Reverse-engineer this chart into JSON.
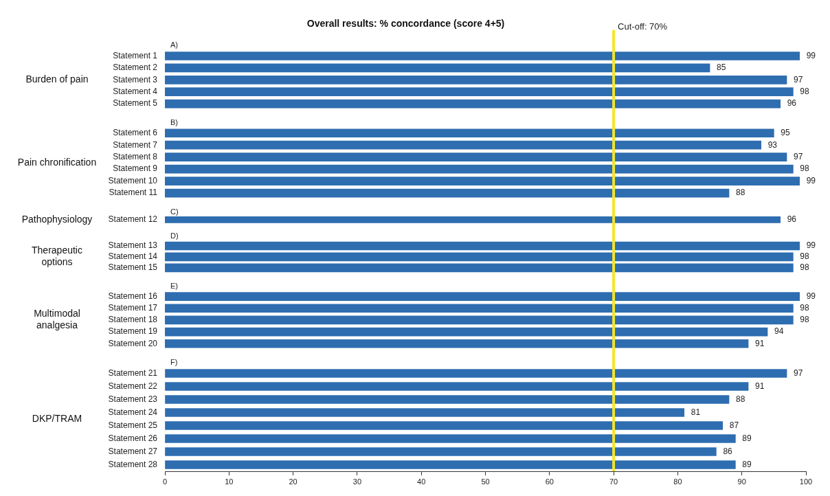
{
  "chart_data": [
    {
      "type": "bar",
      "orientation": "horizontal",
      "title": "Overall results: % concordance (score 4+5)",
      "ylabel": "Burden of pain",
      "annotations": [
        "A)"
      ],
      "categories": [
        "Statement 1",
        "Statement 2",
        "Statement 3",
        "Statement 4",
        "Statement 5"
      ],
      "values": [
        99,
        85,
        97,
        98,
        96
      ],
      "color": "#2e6db0",
      "data_labels": true,
      "xlim": [
        0,
        100
      ],
      "tick_labels": "y",
      "ref_lines": [
        {
          "axis": "x",
          "value": 70,
          "label": "Cut-off: 70%",
          "color": "#f5e52a"
        }
      ]
    },
    {
      "type": "bar",
      "orientation": "horizontal",
      "ylabel": "Pain chronification",
      "annotations": [
        "B)"
      ],
      "categories": [
        "Statement 6",
        "Statement 7",
        "Statement 8",
        "Statement 9",
        "Statement 10",
        "Statement 11"
      ],
      "values": [
        95,
        93,
        97,
        98,
        99,
        88
      ],
      "color": "#2e6db0",
      "data_labels": true,
      "xlim": [
        0,
        100
      ],
      "tick_labels": "y",
      "ref_lines": [
        {
          "axis": "x",
          "value": 70,
          "color": "#f5e52a"
        }
      ]
    },
    {
      "type": "bar",
      "orientation": "horizontal",
      "ylabel": "Pathophysiology",
      "annotations": [
        "C)"
      ],
      "categories": [
        "Statement 12"
      ],
      "values": [
        96
      ],
      "color": "#2e6db0",
      "data_labels": true,
      "xlim": [
        0,
        100
      ],
      "tick_labels": "y",
      "ref_lines": [
        {
          "axis": "x",
          "value": 70,
          "color": "#f5e52a"
        }
      ]
    },
    {
      "type": "bar",
      "orientation": "horizontal",
      "ylabel": "Therapeutic options",
      "annotations": [
        "D)"
      ],
      "categories": [
        "Statement 13",
        "Statement 14",
        "Statement 15"
      ],
      "values": [
        99,
        98,
        98
      ],
      "color": "#2e6db0",
      "data_labels": true,
      "xlim": [
        0,
        100
      ],
      "tick_labels": "y",
      "ref_lines": [
        {
          "axis": "x",
          "value": 70,
          "color": "#f5e52a"
        }
      ]
    },
    {
      "type": "bar",
      "orientation": "horizontal",
      "ylabel": "Multimodal analgesia",
      "annotations": [
        "E)"
      ],
      "categories": [
        "Statement 16",
        "Statement 17",
        "Statement 18",
        "Statement 19",
        "Statement 20"
      ],
      "values": [
        99,
        98,
        98,
        94,
        91
      ],
      "color": "#2e6db0",
      "data_labels": true,
      "xlim": [
        0,
        100
      ],
      "tick_labels": "y",
      "ref_lines": [
        {
          "axis": "x",
          "value": 70,
          "color": "#f5e52a"
        }
      ]
    },
    {
      "type": "bar",
      "orientation": "horizontal",
      "ylabel": "DKP/TRAM",
      "annotations": [
        "F)"
      ],
      "categories": [
        "Statement 21",
        "Statement 22",
        "Statement 23",
        "Statement 24",
        "Statement 25",
        "Statement 26",
        "Statement 27",
        "Statement 28"
      ],
      "values": [
        97,
        91,
        88,
        81,
        87,
        89,
        86,
        89
      ],
      "color": "#2e6db0",
      "data_labels": true,
      "xlim": [
        0,
        100
      ],
      "xticks": [
        0,
        10,
        20,
        30,
        40,
        50,
        60,
        70,
        80,
        90,
        100
      ],
      "ref_lines": [
        {
          "axis": "x",
          "value": 70,
          "color": "#f5e52a"
        }
      ]
    }
  ]
}
